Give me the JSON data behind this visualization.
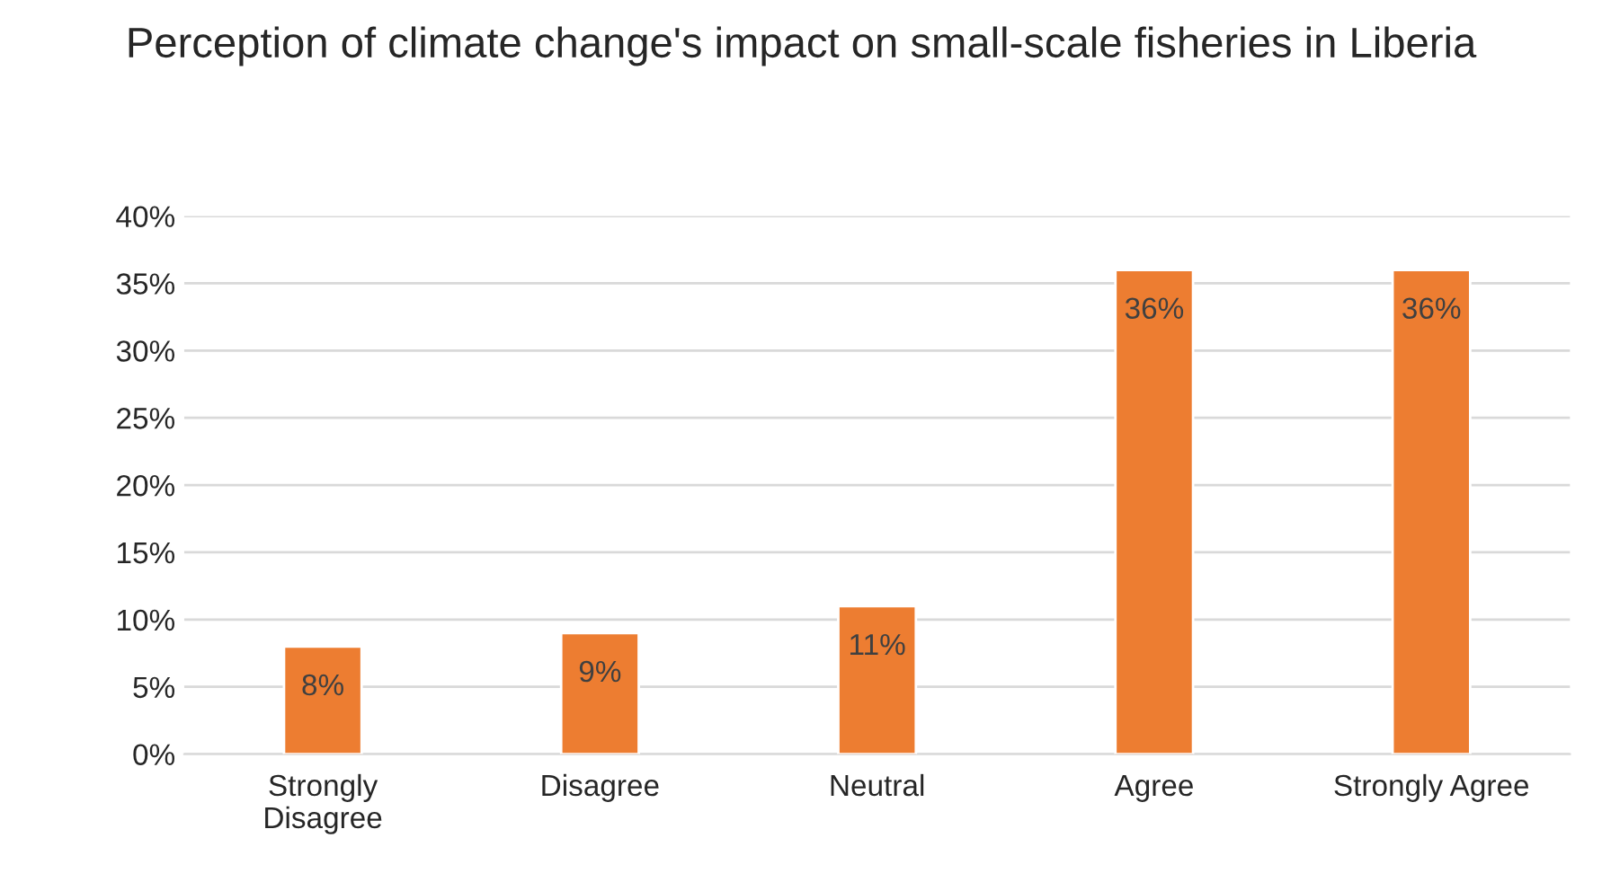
{
  "chart_data": {
    "type": "bar",
    "title": "Perception of climate change's impact on small-scale fisheries in Liberia",
    "categories": [
      "Strongly\nDisagree",
      "Disagree",
      "Neutral",
      "Agree",
      "Strongly Agree"
    ],
    "values": [
      8,
      9,
      11,
      36,
      36
    ],
    "value_labels": [
      "8%",
      "9%",
      "11%",
      "36%",
      "36%"
    ],
    "color": "#ed7d31",
    "ylim": [
      0,
      40
    ],
    "yticks": [
      {
        "value": 0,
        "label": "0%"
      },
      {
        "value": 5,
        "label": "5%"
      },
      {
        "value": 10,
        "label": "10%"
      },
      {
        "value": 15,
        "label": "15%"
      },
      {
        "value": 20,
        "label": "20%"
      },
      {
        "value": 25,
        "label": "25%"
      },
      {
        "value": 30,
        "label": "30%"
      },
      {
        "value": 35,
        "label": "35%"
      },
      {
        "value": 40,
        "label": "40%"
      }
    ],
    "grid": "y"
  }
}
